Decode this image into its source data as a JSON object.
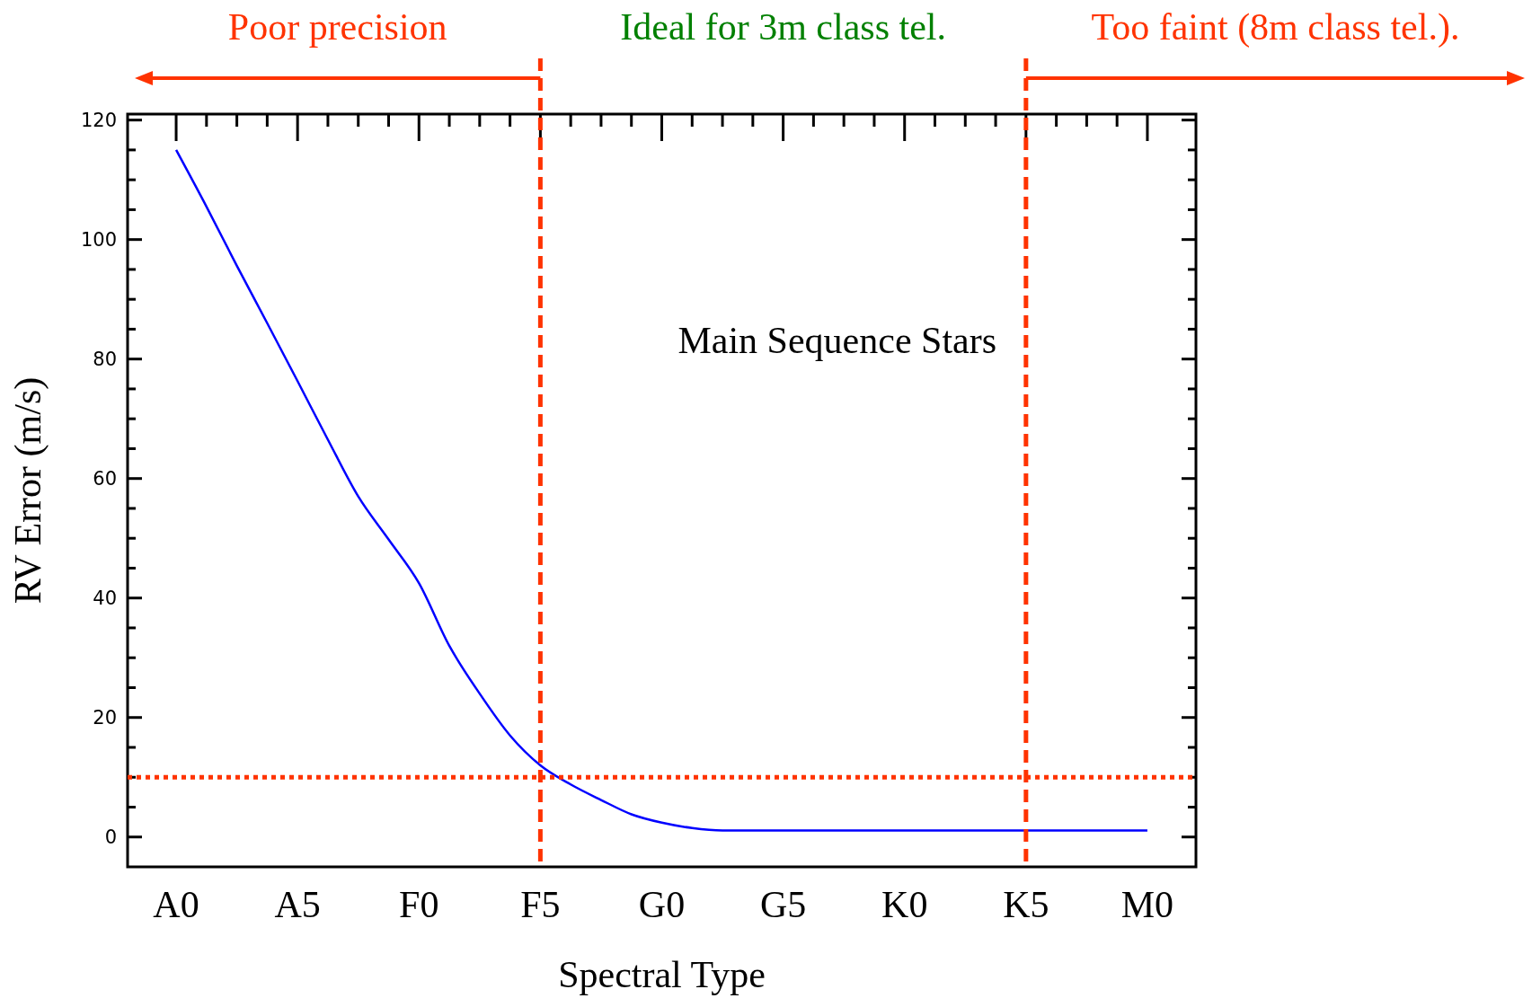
{
  "chart_data": {
    "type": "line",
    "xlabel": "Spectral Type",
    "ylabel": "RV Error (m/s)",
    "annotations": [
      "Poor precision",
      "Ideal for 3m class tel.",
      "Too faint (8m class tel.).",
      "Main Sequence Stars"
    ],
    "categories": [
      "A0",
      null,
      null,
      null,
      "A5",
      null,
      null,
      null,
      "F0",
      null,
      null,
      null,
      "F5",
      null,
      null,
      null,
      "G0",
      null,
      null,
      null,
      "G5",
      null,
      null,
      null,
      "K0",
      null,
      null,
      null,
      "K5",
      null,
      null,
      null,
      "M0"
    ],
    "series": [
      {
        "color": "#0000ff",
        "values": [
          115,
          105.5,
          95.6,
          86,
          76.3,
          66.5,
          57,
          49.8,
          42.5,
          32,
          24,
          17,
          12,
          8.8,
          6.2,
          3.8,
          2.4,
          1.5,
          1.1,
          1.1,
          1.1,
          1.1,
          1.1,
          1.1,
          1.1,
          1.1,
          1.1,
          1.1,
          1.1,
          1.1,
          1.1,
          1.1,
          1.1
        ]
      }
    ],
    "ylim": [
      -5,
      121
    ],
    "yticks": [
      0,
      20,
      40,
      60,
      80,
      100,
      120
    ],
    "ref_lines": [
      {
        "axis": "x",
        "value": "F5",
        "color": "#ff3300",
        "line_style": "dashed"
      },
      {
        "axis": "x",
        "value": "K5",
        "color": "#ff3300",
        "line_style": "dashed"
      },
      {
        "axis": "y",
        "value": 10,
        "color": "#ff3300",
        "line_style": "dotted"
      }
    ],
    "marker": "none",
    "line_style": "solid"
  }
}
